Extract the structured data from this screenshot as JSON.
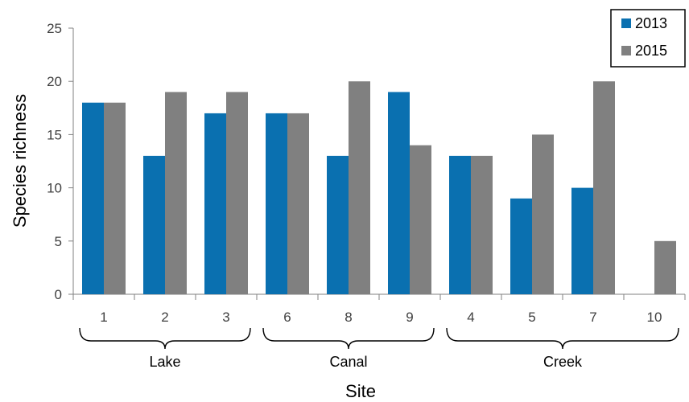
{
  "chart_data": {
    "type": "bar",
    "title": "",
    "xlabel": "Site",
    "ylabel": "Species richness",
    "ylim": [
      0,
      25
    ],
    "yticks": [
      "0",
      "5",
      "10",
      "15",
      "20",
      "25"
    ],
    "grid": false,
    "legend_position": "top-right",
    "categories": [
      "1",
      "2",
      "3",
      "6",
      "8",
      "9",
      "4",
      "5",
      "7",
      "10"
    ],
    "series": [
      {
        "name": "2013",
        "color": "#0a70b0",
        "values": [
          18,
          13,
          17,
          17,
          13,
          19,
          13,
          9,
          10,
          0
        ]
      },
      {
        "name": "2015",
        "color": "#808080",
        "values": [
          18,
          19,
          19,
          17,
          20,
          14,
          13,
          15,
          20,
          5
        ]
      }
    ],
    "groups": [
      {
        "label": "Lake",
        "categories": [
          "1",
          "2",
          "3"
        ]
      },
      {
        "label": "Canal",
        "categories": [
          "6",
          "8",
          "9"
        ]
      },
      {
        "label": "Creek",
        "categories": [
          "4",
          "5",
          "7",
          "10"
        ]
      }
    ]
  }
}
